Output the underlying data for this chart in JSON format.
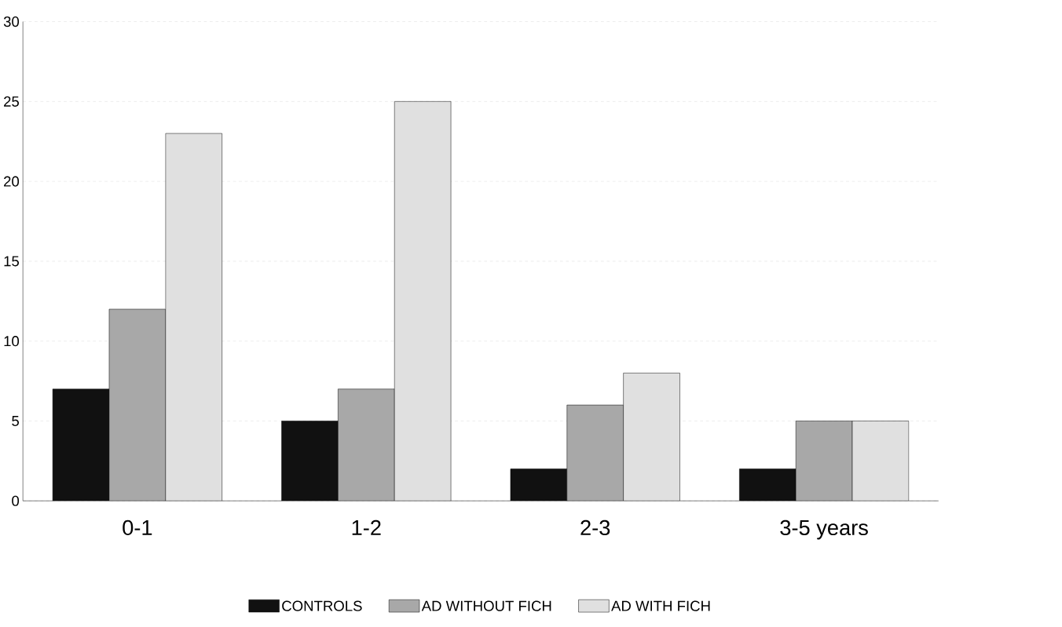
{
  "chart_data": {
    "type": "bar",
    "categories": [
      "0-1",
      "1-2",
      "2-3",
      "3-5 years"
    ],
    "series": [
      {
        "name": "CONTROLS",
        "color": "#111111",
        "values": [
          7,
          5,
          2,
          2
        ]
      },
      {
        "name": "AD WITHOUT FICH",
        "color": "#a8a8a8",
        "values": [
          12,
          7,
          6,
          5
        ]
      },
      {
        "name": "AD WITH FICH",
        "color": "#e0e0e0",
        "values": [
          23,
          25,
          8,
          5
        ]
      }
    ],
    "ylim": [
      0,
      30
    ],
    "yticks": [
      0,
      5,
      10,
      15,
      20,
      25,
      30
    ],
    "grid": "y",
    "legend": "bottom"
  }
}
